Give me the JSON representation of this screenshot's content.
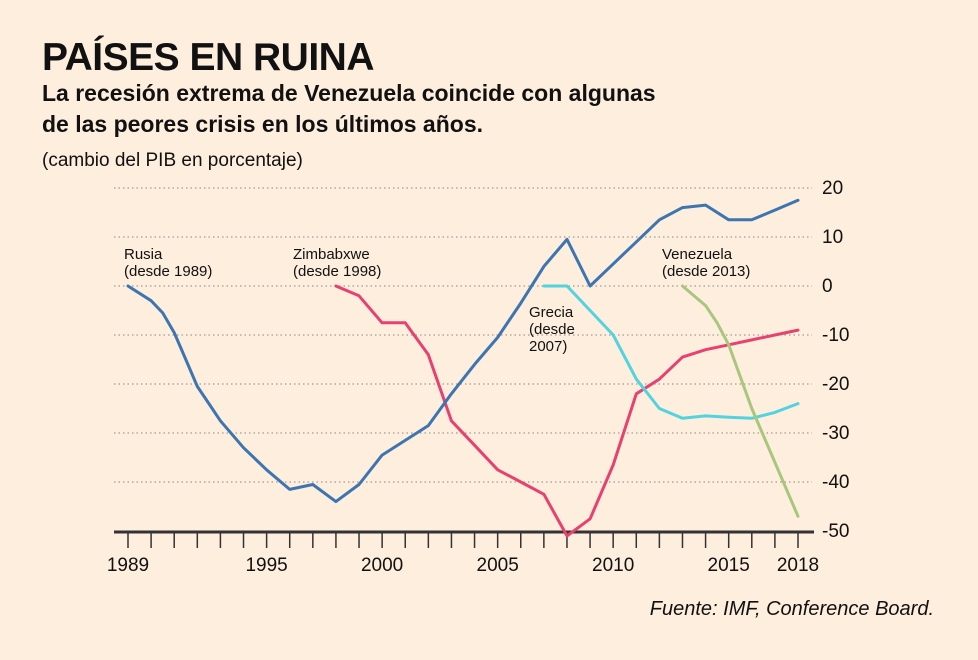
{
  "header": {
    "title": "PAÍSES EN RUINA",
    "subtitle_line1": "La recesión extrema de Venezuela coincide con algunas",
    "subtitle_line2": "de las peores crisis en los últimos años.",
    "unit": "(cambio del PIB en porcentaje)"
  },
  "source": "Fuente: IMF, Conference Board.",
  "colors": {
    "background": "#fdeedd",
    "rusia": "#3c75b0",
    "zimbabwe": "#e8416f",
    "grecia": "#52d3e0",
    "venezuela": "#a8c77d"
  },
  "chart_data": {
    "type": "line",
    "xlim": [
      1988.5,
      2018.5
    ],
    "ylim": [
      -50,
      20
    ],
    "x_ticks": [
      1989,
      1995,
      2000,
      2005,
      2010,
      2015,
      2018
    ],
    "x_tick_labels": [
      "1989",
      "1995",
      "2000",
      "2005",
      "2010",
      "2015",
      "2018"
    ],
    "y_ticks": [
      20,
      10,
      0,
      -10,
      -20,
      -30,
      -40,
      -50
    ],
    "y_tick_labels": [
      "20",
      "10",
      "0",
      "-10",
      "-20",
      "-30",
      "-40",
      "-50"
    ],
    "grid": "horizontal dotted",
    "series": [
      {
        "key": "rusia",
        "label_line1": "Rusia",
        "label_line2": "(desde 1989)",
        "x": [
          1989,
          1990,
          1990.5,
          1991,
          1991.5,
          1992,
          1992.5,
          1993,
          1994,
          1995,
          1996,
          1997,
          1998,
          1999,
          2000,
          2001,
          2002,
          2003,
          2004,
          2005,
          2006,
          2007,
          2008,
          2009,
          2010,
          2011,
          2012,
          2013,
          2014,
          2015,
          2016,
          2017,
          2018
        ],
        "y": [
          0,
          -3,
          -5.5,
          -9.5,
          -15,
          -20.5,
          -24,
          -27.5,
          -33,
          -37.5,
          -41.5,
          -40.5,
          -44,
          -40.5,
          -34.5,
          -31.5,
          -28.5,
          -22,
          -16,
          -10.5,
          -3.5,
          4,
          9.5,
          0,
          4.5,
          9,
          13.5,
          16,
          16.5,
          13.5,
          13.5,
          15.5,
          17.5
        ]
      },
      {
        "key": "zimbabwe",
        "label_line1": "Zimbabxwe",
        "label_line2": "(desde 1998)",
        "x": [
          1998,
          1999,
          2000,
          2001,
          2002,
          2003,
          2004,
          2005,
          2006,
          2007,
          2008,
          2009,
          2010,
          2011,
          2012,
          2013,
          2014,
          2015,
          2016,
          2017,
          2018
        ],
        "y": [
          0,
          -2,
          -7.5,
          -7.5,
          -14,
          -27.5,
          -32.5,
          -37.5,
          -40,
          -42.5,
          -51,
          -47.5,
          -36.5,
          -22,
          -19,
          -14.5,
          -13,
          -12,
          -11,
          -10,
          -9
        ]
      },
      {
        "key": "grecia",
        "label_line1": "Grecia",
        "label_line2": "(desde",
        "label_line3": "2007)",
        "x": [
          2007,
          2008,
          2009,
          2010,
          2011,
          2012,
          2013,
          2014,
          2015,
          2016,
          2017,
          2018
        ],
        "y": [
          0,
          0,
          -5,
          -10,
          -19,
          -25,
          -27,
          -26.5,
          -26.8,
          -27,
          -25.8,
          -24
        ]
      },
      {
        "key": "venezuela",
        "label_line1": "Venezuela",
        "label_line2": "(desde 2013)",
        "x": [
          2013,
          2014,
          2014.5,
          2015,
          2016,
          2017,
          2018
        ],
        "y": [
          0,
          -4,
          -7.5,
          -12,
          -25,
          -36,
          -47
        ]
      }
    ]
  }
}
